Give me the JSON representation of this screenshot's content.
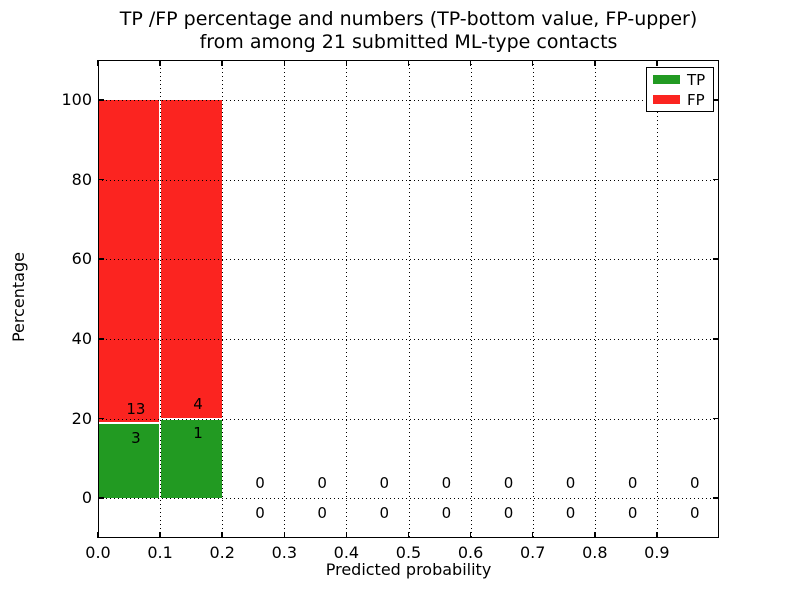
{
  "chart_data": {
    "type": "bar",
    "stacked": true,
    "title_lines": [
      "TP /FP percentage and numbers (TP-bottom value, FP-upper)",
      "from among 21 submitted ML-type contacts"
    ],
    "xlabel": "Predicted probability",
    "ylabel": "Percentage",
    "xlim": [
      0.0,
      1.0
    ],
    "ylim": [
      -10,
      110
    ],
    "xtick_values": [
      0.0,
      0.1,
      0.2,
      0.3,
      0.4,
      0.5,
      0.6,
      0.7,
      0.8,
      0.9
    ],
    "xtick_labels": [
      "0.0",
      "0.1",
      "0.2",
      "0.3",
      "0.4",
      "0.5",
      "0.6",
      "0.7",
      "0.8",
      "0.9"
    ],
    "ytick_values": [
      0,
      20,
      40,
      60,
      80,
      100
    ],
    "ytick_labels": [
      "0",
      "20",
      "40",
      "60",
      "80",
      "100"
    ],
    "grid": "dotted",
    "colors": {
      "tp": "#229a22",
      "fp": "#fb2420"
    },
    "legend": {
      "position": "upper-right",
      "entries": [
        {
          "label": "TP",
          "series": "tp"
        },
        {
          "label": "FP",
          "series": "fp"
        }
      ]
    },
    "bin_width": 0.1,
    "bins": [
      {
        "x0": 0.0,
        "x1": 0.1,
        "tp_count": 3,
        "fp_count": 13,
        "tp_pct": 18.75,
        "fp_pct": 81.25
      },
      {
        "x0": 0.1,
        "x1": 0.2,
        "tp_count": 1,
        "fp_count": 4,
        "tp_pct": 20.0,
        "fp_pct": 80.0
      },
      {
        "x0": 0.2,
        "x1": 0.3,
        "tp_count": 0,
        "fp_count": 0,
        "tp_pct": 0.0,
        "fp_pct": 0.0
      },
      {
        "x0": 0.3,
        "x1": 0.4,
        "tp_count": 0,
        "fp_count": 0,
        "tp_pct": 0.0,
        "fp_pct": 0.0
      },
      {
        "x0": 0.4,
        "x1": 0.5,
        "tp_count": 0,
        "fp_count": 0,
        "tp_pct": 0.0,
        "fp_pct": 0.0
      },
      {
        "x0": 0.5,
        "x1": 0.6,
        "tp_count": 0,
        "fp_count": 0,
        "tp_pct": 0.0,
        "fp_pct": 0.0
      },
      {
        "x0": 0.6,
        "x1": 0.7,
        "tp_count": 0,
        "fp_count": 0,
        "tp_pct": 0.0,
        "fp_pct": 0.0
      },
      {
        "x0": 0.7,
        "x1": 0.8,
        "tp_count": 0,
        "fp_count": 0,
        "tp_pct": 0.0,
        "fp_pct": 0.0
      },
      {
        "x0": 0.8,
        "x1": 0.9,
        "tp_count": 0,
        "fp_count": 0,
        "tp_pct": 0.0,
        "fp_pct": 0.0
      },
      {
        "x0": 0.9,
        "x1": 1.0,
        "tp_count": 0,
        "fp_count": 0,
        "tp_pct": 0.0,
        "fp_pct": 0.0
      }
    ]
  }
}
